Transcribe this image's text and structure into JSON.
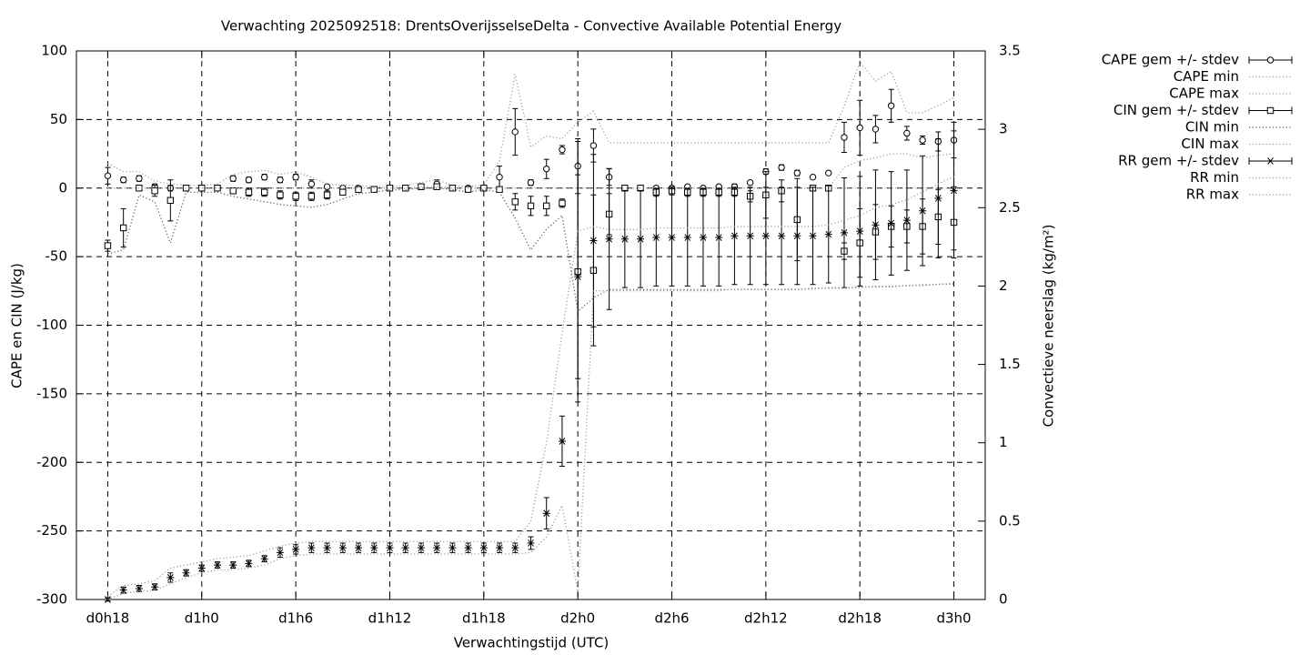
{
  "chart_data": {
    "type": "errorbar",
    "title": "Verwachting 2025092518: DrentsOverijsselseDelta - Convective Available Potential Energy",
    "x_label": "Verwachtingstijd (UTC)",
    "y_label": "CAPE en CIN (J/kg)",
    "y2_label": "Convectieve neerslag (kg/m²)",
    "x": [
      18,
      19,
      20,
      21,
      22,
      23,
      24,
      25,
      26,
      27,
      28,
      29,
      30,
      31,
      32,
      33,
      34,
      35,
      36,
      37,
      38,
      39,
      40,
      41,
      42,
      43,
      44,
      45,
      46,
      47,
      48,
      49,
      50,
      51,
      52,
      53,
      54,
      55,
      56,
      57,
      58,
      59,
      60,
      61,
      62,
      63,
      64,
      65,
      66,
      67,
      68,
      69,
      70,
      71,
      72
    ],
    "xlim": [
      16,
      74
    ],
    "xticks": [
      {
        "value": 18,
        "label": "d0h18"
      },
      {
        "value": 24,
        "label": "d1h0"
      },
      {
        "value": 30,
        "label": "d1h6"
      },
      {
        "value": 36,
        "label": "d1h12"
      },
      {
        "value": 42,
        "label": "d1h18"
      },
      {
        "value": 48,
        "label": "d2h0"
      },
      {
        "value": 54,
        "label": "d2h6"
      },
      {
        "value": 60,
        "label": "d2h12"
      },
      {
        "value": 66,
        "label": "d2h18"
      },
      {
        "value": 72,
        "label": "d3h0"
      }
    ],
    "ylim": [
      -300,
      100
    ],
    "yticks": [
      -300,
      -250,
      -200,
      -150,
      -100,
      -50,
      0,
      50,
      100
    ],
    "y2lim": [
      0,
      3.5
    ],
    "y2ticks": [
      0,
      0.5,
      1,
      1.5,
      2,
      2.5,
      3,
      3.5
    ],
    "grid": true,
    "legend": "outside-right",
    "series": [
      {
        "name": "CAPE gem +/- stdev",
        "marker": "circle",
        "style": "errorbars",
        "color": "#000000",
        "axis": "y",
        "values": [
          9,
          6,
          7,
          1,
          0,
          0,
          0,
          0,
          7,
          6,
          8,
          6,
          8,
          3,
          1,
          0,
          0,
          -1,
          0,
          0,
          1,
          3,
          0,
          0,
          0,
          8,
          41,
          4,
          14,
          28,
          16,
          31,
          8,
          0,
          0,
          0,
          0,
          1,
          0,
          1,
          1,
          4,
          12,
          15,
          11,
          8,
          11,
          37,
          44,
          43,
          60,
          40,
          35,
          34,
          35
        ],
        "errors": [
          6,
          2,
          2,
          2,
          2,
          1,
          1,
          1,
          2,
          2,
          2,
          2,
          2,
          3,
          1,
          1,
          1,
          1,
          1,
          1,
          1,
          3,
          1,
          1,
          1,
          8,
          17,
          2,
          7,
          3,
          20,
          12,
          6,
          1,
          1,
          1,
          1,
          1,
          1,
          1,
          2,
          1,
          2,
          2,
          2,
          1,
          1,
          11,
          20,
          10,
          12,
          5,
          3,
          7,
          13
        ]
      },
      {
        "name": "CAPE min",
        "style": "dotted",
        "color": "#999999",
        "axis": "y",
        "values": [
          0,
          0,
          0,
          0,
          0,
          0,
          0,
          0,
          0,
          0,
          0,
          0,
          0,
          0,
          0,
          0,
          0,
          0,
          0,
          0,
          0,
          0,
          0,
          0,
          0,
          0,
          0,
          0,
          0,
          0,
          0,
          0,
          0,
          0,
          0,
          0,
          0,
          0,
          0,
          0,
          0,
          0,
          0,
          0,
          0,
          0,
          0,
          15,
          20,
          22,
          25,
          25,
          22,
          24,
          25
        ]
      },
      {
        "name": "CAPE max",
        "style": "dotted",
        "color": "#999999",
        "axis": "y",
        "values": [
          18,
          12,
          12,
          5,
          3,
          2,
          2,
          3,
          10,
          12,
          13,
          10,
          12,
          8,
          3,
          2,
          2,
          1,
          1,
          2,
          4,
          6,
          2,
          1,
          2,
          20,
          83,
          30,
          38,
          36,
          48,
          56,
          33,
          33,
          33,
          33,
          33,
          33,
          33,
          33,
          33,
          33,
          33,
          33,
          33,
          33,
          33,
          60,
          92,
          78,
          85,
          55,
          55,
          60,
          66
        ]
      },
      {
        "name": "CIN gem +/- stdev",
        "marker": "square",
        "style": "errorbars",
        "color": "#000000",
        "axis": "y",
        "values": [
          -42,
          -29,
          0,
          -2,
          -9,
          0,
          0,
          0,
          -2,
          -3,
          -3,
          -5,
          -6,
          -6,
          -5,
          -3,
          -1,
          -1,
          0,
          0,
          1,
          1,
          0,
          -1,
          0,
          -1,
          -10,
          -13,
          -13,
          -11,
          -61,
          -60,
          -19,
          0,
          0,
          -3,
          -2,
          -3,
          -3,
          -3,
          -3,
          -6,
          -5,
          -2,
          -23,
          0,
          0,
          -46,
          -40,
          -32,
          -28,
          -28,
          -28,
          -21,
          -25
        ],
        "errors": [
          4,
          14,
          2,
          4,
          15,
          1,
          1,
          1,
          2,
          3,
          3,
          3,
          3,
          3,
          3,
          2,
          1,
          1,
          1,
          1,
          1,
          1,
          1,
          1,
          1,
          1,
          6,
          7,
          7,
          3,
          95,
          55,
          15,
          1,
          1,
          3,
          3,
          3,
          3,
          3,
          3,
          4,
          17,
          8,
          30,
          2,
          2,
          6,
          25,
          20,
          15,
          12,
          20,
          20,
          26
        ]
      },
      {
        "name": "CIN min",
        "style": "dotted",
        "color": "#555555",
        "axis": "y",
        "values": [
          -48,
          -45,
          -5,
          -10,
          -40,
          -3,
          -3,
          -3,
          -6,
          -8,
          -10,
          -12,
          -13,
          -14,
          -12,
          -8,
          -4,
          -3,
          -1,
          -1,
          0,
          0,
          -1,
          -3,
          -1,
          -3,
          -22,
          -45,
          -30,
          -20,
          -90,
          -80,
          -74,
          -74,
          -74,
          -74,
          -74,
          -74,
          -74,
          -74,
          -74,
          -74,
          -74,
          -74,
          -74,
          -73,
          -73,
          -73,
          -72,
          -72,
          -72,
          -71,
          -71,
          -70,
          -70
        ]
      },
      {
        "name": "CIN max",
        "style": "dotted",
        "color": "#999999",
        "axis": "y",
        "values": [
          0,
          0,
          0,
          0,
          0,
          0,
          0,
          0,
          0,
          0,
          0,
          0,
          0,
          0,
          0,
          0,
          0,
          0,
          0,
          0,
          1,
          1,
          0,
          0,
          0,
          0,
          0,
          0,
          0,
          0,
          0,
          0,
          0,
          0,
          0,
          0,
          0,
          0,
          0,
          0,
          0,
          0,
          0,
          0,
          0,
          0,
          0,
          0,
          0,
          0,
          0,
          0,
          0,
          0,
          0
        ]
      },
      {
        "name": "RR gem +/- stdev",
        "marker": "star",
        "style": "errorbars",
        "color": "#000000",
        "axis": "y2",
        "values": [
          0,
          0.06,
          0.07,
          0.08,
          0.14,
          0.17,
          0.2,
          0.22,
          0.22,
          0.23,
          0.26,
          0.3,
          0.32,
          0.33,
          0.33,
          0.33,
          0.33,
          0.33,
          0.33,
          0.33,
          0.33,
          0.33,
          0.33,
          0.33,
          0.33,
          0.33,
          0.33,
          0.36,
          0.55,
          1.01,
          2.06,
          2.29,
          2.3,
          2.3,
          2.3,
          2.31,
          2.31,
          2.31,
          2.31,
          2.31,
          2.32,
          2.32,
          2.32,
          2.32,
          2.32,
          2.32,
          2.33,
          2.34,
          2.35,
          2.39,
          2.4,
          2.42,
          2.48,
          2.56,
          2.61
        ],
        "errors": [
          0.01,
          0.02,
          0.02,
          0.02,
          0.03,
          0.02,
          0.02,
          0.02,
          0.02,
          0.02,
          0.02,
          0.03,
          0.03,
          0.03,
          0.03,
          0.03,
          0.03,
          0.03,
          0.03,
          0.03,
          0.03,
          0.03,
          0.03,
          0.03,
          0.03,
          0.03,
          0.03,
          0.04,
          0.1,
          0.16,
          0.65,
          0.55,
          0.45,
          0.31,
          0.31,
          0.31,
          0.31,
          0.31,
          0.31,
          0.31,
          0.31,
          0.31,
          0.31,
          0.31,
          0.31,
          0.31,
          0.31,
          0.35,
          0.35,
          0.35,
          0.33,
          0.32,
          0.35,
          0.38,
          0.38
        ]
      },
      {
        "name": "RR min",
        "style": "dotted",
        "color": "#999999",
        "axis": "y2",
        "values": [
          0,
          0.04,
          0.05,
          0.06,
          0.1,
          0.14,
          0.17,
          0.19,
          0.19,
          0.2,
          0.22,
          0.26,
          0.28,
          0.29,
          0.29,
          0.29,
          0.29,
          0.29,
          0.29,
          0.29,
          0.29,
          0.29,
          0.29,
          0.29,
          0.29,
          0.29,
          0.29,
          0.3,
          0.4,
          0.6,
          0.05,
          1.97,
          1.97,
          1.97,
          1.97,
          1.97,
          1.97,
          1.97,
          1.97,
          1.97,
          1.98,
          1.98,
          1.98,
          1.98,
          1.98,
          1.98,
          1.99,
          1.99,
          1.99,
          2.0,
          2.0,
          2.0,
          2.01,
          2.01,
          2.02
        ]
      },
      {
        "name": "RR max",
        "style": "dotted",
        "color": "#999999",
        "axis": "y2",
        "values": [
          0.02,
          0.09,
          0.1,
          0.12,
          0.2,
          0.22,
          0.24,
          0.26,
          0.27,
          0.28,
          0.31,
          0.34,
          0.36,
          0.37,
          0.37,
          0.37,
          0.37,
          0.37,
          0.37,
          0.37,
          0.37,
          0.37,
          0.37,
          0.37,
          0.37,
          0.37,
          0.37,
          0.5,
          1.0,
          1.7,
          2.35,
          2.38,
          2.36,
          2.36,
          2.36,
          2.37,
          2.37,
          2.37,
          2.37,
          2.37,
          2.38,
          2.38,
          2.38,
          2.38,
          2.38,
          2.38,
          2.39,
          2.42,
          2.45,
          2.5,
          2.52,
          2.55,
          2.6,
          2.65,
          2.7
        ]
      }
    ]
  }
}
